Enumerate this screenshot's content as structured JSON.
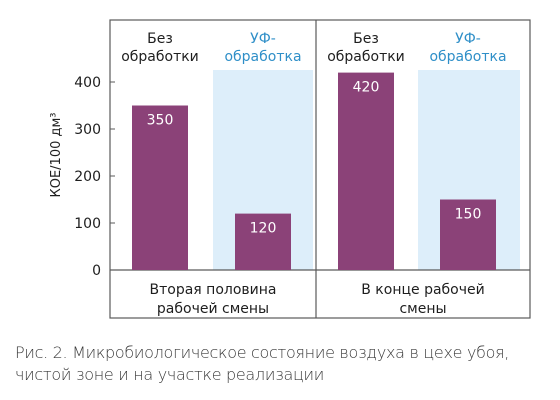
{
  "chart_data": {
    "type": "bar",
    "groups": [
      {
        "label": [
          "Вторая половина",
          "рабочей смены"
        ],
        "bars": [
          {
            "label": [
              "Без",
              "обработки"
            ],
            "value": 350,
            "value_label": "350",
            "treatment": "none"
          },
          {
            "label": [
              "УФ-",
              "обработка"
            ],
            "value": 120,
            "value_label": "120",
            "treatment": "uv"
          }
        ]
      },
      {
        "label": [
          "В конце рабочей",
          "смены"
        ],
        "bars": [
          {
            "label": [
              "Без",
              "обработки"
            ],
            "value": 420,
            "value_label": "420",
            "treatment": "none"
          },
          {
            "label": [
              "УФ-",
              "обработка"
            ],
            "value": 150,
            "value_label": "150",
            "treatment": "uv"
          }
        ]
      }
    ],
    "ylabel": "КОЕ/100 дм³",
    "ylim": [
      0,
      420
    ],
    "yticks": [
      0,
      100,
      200,
      300,
      400
    ],
    "grid": false,
    "colors": {
      "bar": "#8b4278",
      "uv_background": "#ddeefa",
      "uv_header": "#2f8fc8",
      "text": "#1e1e1e",
      "frame": "#5a5a5a"
    }
  },
  "caption": [
    "Рис. 2. Микробиологическое состояние воздуха в цехе убоя,",
    "чистой зоне и на участке реализации"
  ]
}
